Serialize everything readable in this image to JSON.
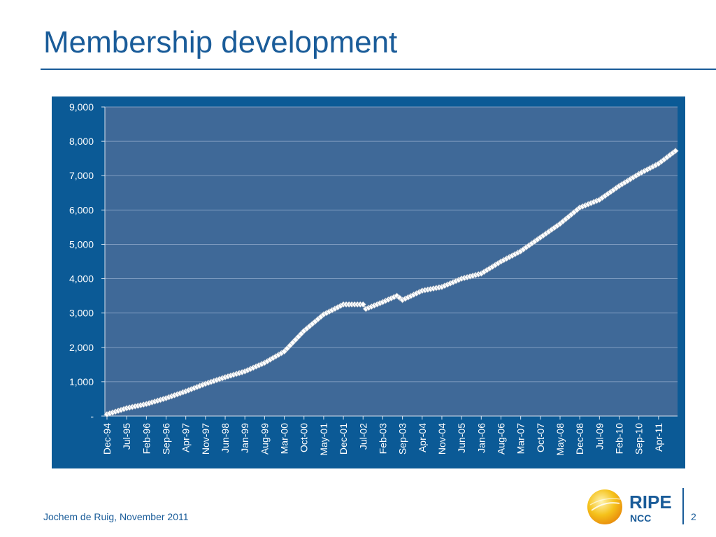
{
  "slide": {
    "title": "Membership development",
    "footer": "Jochem de Ruig, November 2011",
    "page_number": "2"
  },
  "logo": {
    "primary": "RIPE",
    "secondary": "NCC"
  },
  "colors": {
    "title": "#1a5c99",
    "frame": "#0b5a96",
    "plot": "#3f6998",
    "marker": "#ffffff"
  },
  "chart_data": {
    "type": "line",
    "title": "",
    "xlabel": "",
    "ylabel": "",
    "ylim": [
      0,
      9000
    ],
    "y_ticks": [
      "-",
      "1,000",
      "2,000",
      "3,000",
      "4,000",
      "5,000",
      "6,000",
      "7,000",
      "8,000",
      "9,000"
    ],
    "x_tick_labels": [
      "Dec-94",
      "Jul-95",
      "Feb-96",
      "Sep-96",
      "Apr-97",
      "Nov-97",
      "Jun-98",
      "Jan-99",
      "Aug-99",
      "Mar-00",
      "Oct-00",
      "May-01",
      "Dec-01",
      "Jul-02",
      "Feb-03",
      "Sep-03",
      "Apr-04",
      "Nov-04",
      "Jun-05",
      "Jan-06",
      "Aug-06",
      "Mar-07",
      "Oct-07",
      "May-08",
      "Dec-08",
      "Jul-09",
      "Feb-10",
      "Sep-10",
      "Apr-11"
    ],
    "grid": true,
    "marker": "diamond",
    "series": [
      {
        "x": [
          "Dec-94",
          "Jul-95",
          "Feb-96",
          "Sep-96",
          "Apr-97",
          "Nov-97",
          "Jun-98",
          "Jan-99",
          "Aug-99",
          "Mar-00",
          "Oct-00",
          "May-01",
          "Dec-01",
          "Jul-02",
          "Aug-02",
          "Feb-03",
          "Jul-03",
          "Sep-03",
          "Apr-04",
          "Nov-04",
          "Jun-05",
          "Jan-06",
          "Aug-06",
          "Mar-07",
          "Oct-07",
          "May-08",
          "Dec-08",
          "Jul-09",
          "Feb-10",
          "Sep-10",
          "Apr-11",
          "Oct-11"
        ],
        "values": [
          50,
          230,
          350,
          520,
          720,
          940,
          1130,
          1300,
          1550,
          1880,
          2480,
          2960,
          3250,
          3250,
          3120,
          3320,
          3500,
          3380,
          3650,
          3760,
          4000,
          4150,
          4500,
          4800,
          5200,
          5600,
          6070,
          6300,
          6700,
          7050,
          7350,
          7720
        ]
      }
    ]
  }
}
